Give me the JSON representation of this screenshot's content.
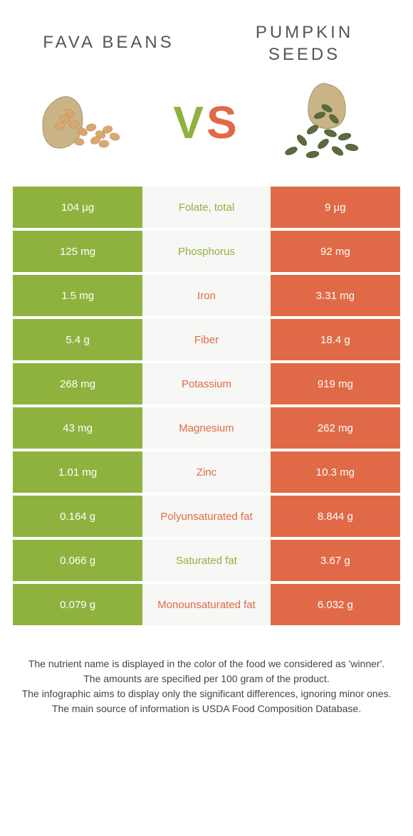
{
  "header": {
    "left_title": "FAVA BEANS",
    "right_title": "PUMPKIN SEEDS",
    "vs_v": "V",
    "vs_s": "S"
  },
  "colors": {
    "left": "#8fb23f",
    "right": "#e06a47",
    "mid_bg": "#f7f7f5"
  },
  "rows": [
    {
      "left": "104 µg",
      "label": "Folate, total",
      "right": "9 µg",
      "winner": "left"
    },
    {
      "left": "125 mg",
      "label": "Phosphorus",
      "right": "92 mg",
      "winner": "left"
    },
    {
      "left": "1.5 mg",
      "label": "Iron",
      "right": "3.31 mg",
      "winner": "right"
    },
    {
      "left": "5.4 g",
      "label": "Fiber",
      "right": "18.4 g",
      "winner": "right"
    },
    {
      "left": "268 mg",
      "label": "Potassium",
      "right": "919 mg",
      "winner": "right"
    },
    {
      "left": "43 mg",
      "label": "Magnesium",
      "right": "262 mg",
      "winner": "right"
    },
    {
      "left": "1.01 mg",
      "label": "Zinc",
      "right": "10.3 mg",
      "winner": "right"
    },
    {
      "left": "0.164 g",
      "label": "Polyunsaturated fat",
      "right": "8.844 g",
      "winner": "right"
    },
    {
      "left": "0.066 g",
      "label": "Saturated fat",
      "right": "3.67 g",
      "winner": "left"
    },
    {
      "left": "0.079 g",
      "label": "Monounsaturated fat",
      "right": "6.032 g",
      "winner": "right"
    }
  ],
  "footer": {
    "line1": "The nutrient name is displayed in the color of the food we considered as 'winner'.",
    "line2": "The amounts are specified per 100 gram of the product.",
    "line3": "The infographic aims to display only the significant differences, ignoring minor ones.",
    "line4": "The main source of information is USDA Food Composition Database."
  }
}
